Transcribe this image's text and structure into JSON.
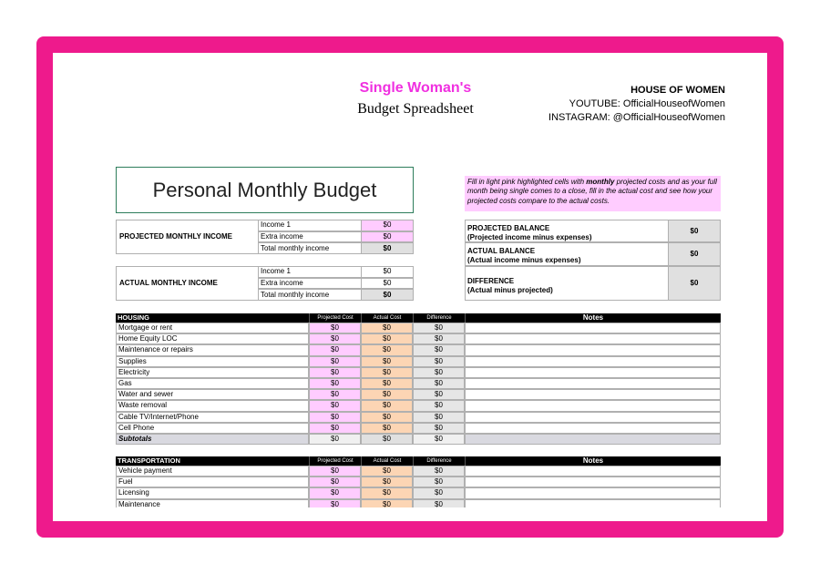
{
  "header": {
    "title": "Single Woman's",
    "subtitle": "Budget Spreadsheet",
    "brand": "HOUSE OF WOMEN",
    "youtube": "YOUTUBE: OfficialHouseofWomen",
    "instagram": "INSTAGRAM: @OfficialHouseofWomen"
  },
  "budget_title": "Personal Monthly Budget",
  "instructions": [
    "Fill in light pink highlighted cells with ",
    "monthly",
    " projected costs and as your full month being single comes to a close, fill in the actual cost and see how your projected costs compare to the actual costs."
  ],
  "projected_income": {
    "label": "PROJECTED MONTHLY INCOME",
    "rows": [
      [
        "Income 1",
        "$0"
      ],
      [
        "Extra income",
        "$0"
      ],
      [
        "Total monthly income",
        "$0"
      ]
    ]
  },
  "actual_income": {
    "label": "ACTUAL MONTHLY INCOME",
    "rows": [
      [
        "Income 1",
        "$0"
      ],
      [
        "Extra income",
        "$0"
      ],
      [
        "Total monthly income",
        "$0"
      ]
    ]
  },
  "balances": [
    {
      "label": "PROJECTED BALANCE",
      "note": "(Projected income minus expenses)",
      "value": "$0"
    },
    {
      "label": "ACTUAL BALANCE",
      "note": "(Actual income minus expenses)",
      "value": "$0"
    },
    {
      "label": "DIFFERENCE",
      "note": "(Actual minus projected)",
      "value": "$0"
    }
  ],
  "sections": [
    {
      "title": "HOUSING",
      "columns": [
        "Projected Cost",
        "Actual Cost",
        "Difference",
        "Notes"
      ],
      "rows": [
        [
          "Mortgage or rent",
          "$0",
          "$0",
          "$0"
        ],
        [
          "Home Equity LOC",
          "$0",
          "$0",
          "$0"
        ],
        [
          "Maintenance or repairs",
          "$0",
          "$0",
          "$0"
        ],
        [
          "Supplies",
          "$0",
          "$0",
          "$0"
        ],
        [
          "Electricity",
          "$0",
          "$0",
          "$0"
        ],
        [
          "Gas",
          "$0",
          "$0",
          "$0"
        ],
        [
          "Water and sewer",
          "$0",
          "$0",
          "$0"
        ],
        [
          "Waste removal",
          "$0",
          "$0",
          "$0"
        ],
        [
          "Cable TV/Internet/Phone",
          "$0",
          "$0",
          "$0"
        ],
        [
          "Cell Phone",
          "$0",
          "$0",
          "$0"
        ]
      ],
      "subtotal": [
        "Subtotals",
        "$0",
        "$0",
        "$0"
      ]
    },
    {
      "title": "TRANSPORTATION",
      "columns": [
        "Projected Cost",
        "Actual Cost",
        "Difference",
        "Notes"
      ],
      "rows": [
        [
          "Vehicle payment",
          "$0",
          "$0",
          "$0"
        ],
        [
          "Fuel",
          "$0",
          "$0",
          "$0"
        ],
        [
          "Licensing",
          "$0",
          "$0",
          "$0"
        ],
        [
          "Maintenance",
          "$0",
          "$0",
          "$0"
        ]
      ]
    }
  ]
}
